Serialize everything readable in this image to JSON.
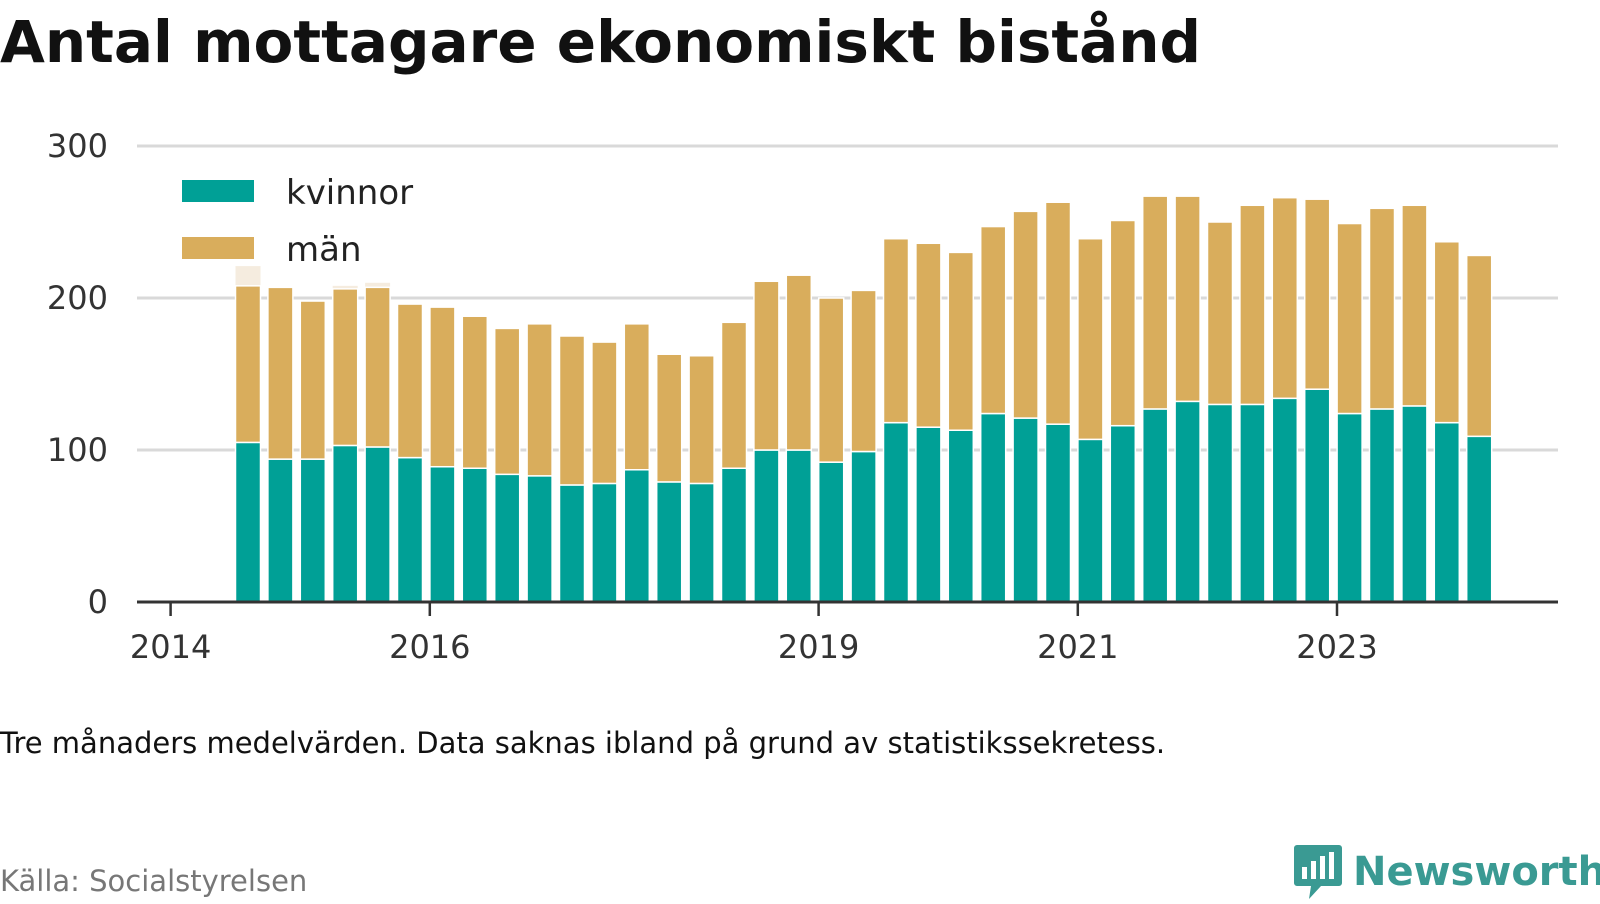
{
  "title": "Antal mottagare ekonomiskt bistånd",
  "note": "Tre månaders medelvärden. Data saknas ibland på grund av statistikssekretess.",
  "source": "Källa: Socialstyrelsen",
  "brand": {
    "name": "Newsworthy",
    "logo_icon": "newsworthy-chart-bubble-icon",
    "color": "#3a9a93"
  },
  "colors": {
    "kvinnor": "#00a096",
    "man": "#d9ad5c",
    "faded_bar": "#f5ecdf",
    "grid": "#d9d9d9",
    "axis": "#333333"
  },
  "chart_data": {
    "type": "bar",
    "stacked": true,
    "title": "Antal mottagare ekonomiskt bistånd",
    "xlabel": "",
    "ylabel": "",
    "ylim": [
      0,
      300
    ],
    "y_ticks": [
      0,
      100,
      200,
      300
    ],
    "x_ticks": [
      "2014",
      "2016",
      "2019",
      "2021",
      "2023"
    ],
    "grid": true,
    "legend_position": "top-left",
    "categories": [
      "2014 Q2",
      "2014 Q3",
      "2014 Q4",
      "2015 Q1",
      "2015 Q2",
      "2015 Q3",
      "2015 Q4",
      "2016 Q1",
      "2016 Q2",
      "2016 Q3",
      "2016 Q4",
      "2017 Q1",
      "2017 Q2",
      "2017 Q3",
      "2017 Q4",
      "2018 Q1",
      "2018 Q2",
      "2018 Q3",
      "2018 Q4",
      "2019 Q1",
      "2019 Q2",
      "2019 Q3",
      "2019 Q4",
      "2020 Q1",
      "2020 Q2",
      "2020 Q3",
      "2020 Q4",
      "2021 Q1",
      "2021 Q2",
      "2021 Q3",
      "2021 Q4",
      "2022 Q1",
      "2022 Q2",
      "2022 Q3",
      "2022 Q4",
      "2023 Q1",
      "2023 Q2",
      "2023 Q3",
      "2023 Q4"
    ],
    "series": [
      {
        "name": "kvinnor",
        "values": [
          105,
          94,
          94,
          103,
          102,
          95,
          89,
          88,
          84,
          83,
          77,
          78,
          87,
          79,
          78,
          88,
          100,
          100,
          92,
          99,
          118,
          115,
          113,
          124,
          121,
          117,
          107,
          116,
          127,
          132,
          130,
          130,
          134,
          140,
          124,
          127,
          129,
          118,
          109
        ]
      },
      {
        "name": "män",
        "values": [
          103,
          113,
          104,
          103,
          105,
          101,
          105,
          100,
          96,
          100,
          98,
          93,
          96,
          84,
          84,
          96,
          111,
          115,
          108,
          106,
          121,
          121,
          117,
          123,
          136,
          146,
          132,
          135,
          140,
          135,
          120,
          131,
          132,
          125,
          125,
          132,
          132,
          119,
          119
        ]
      }
    ],
    "faded_extra": [
      {
        "category": "2014 Q2",
        "value": 13
      },
      {
        "category": "2015 Q1",
        "value": 2
      },
      {
        "category": "2015 Q2",
        "value": 3
      }
    ]
  }
}
